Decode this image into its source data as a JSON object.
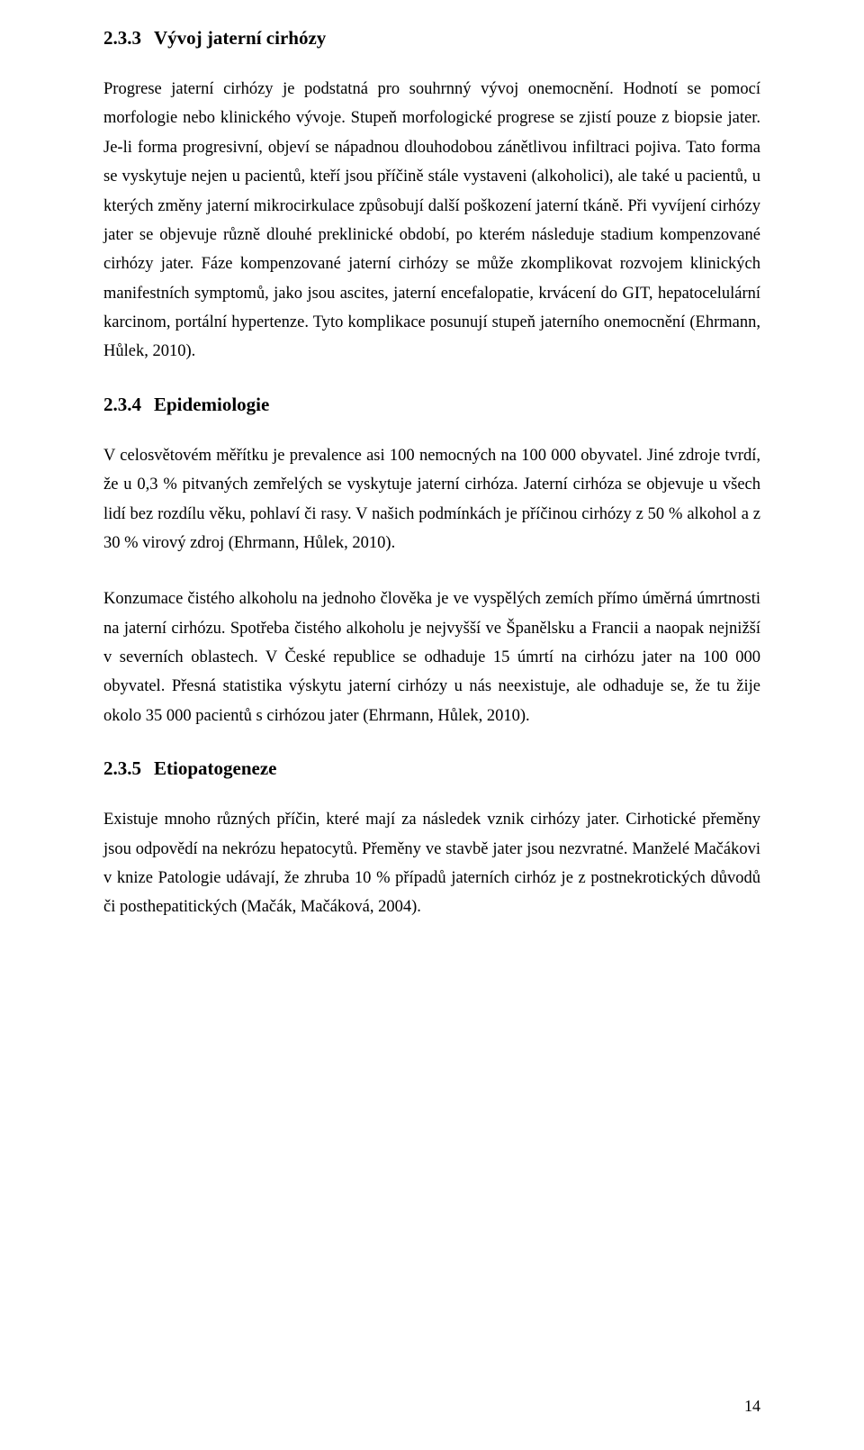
{
  "sections": [
    {
      "number": "2.3.3",
      "title": "Vývoj jaterní cirhózy",
      "paragraphs": [
        "Progrese jaterní cirhózy je podstatná pro souhrnný vývoj onemocnění. Hodnotí se pomocí morfologie nebo klinického vývoje. Stupeň morfologické progrese se zjistí pouze z biopsie jater. Je-li forma progresivní, objeví se nápadnou dlouhodobou zánětlivou infiltraci pojiva. Tato forma se vyskytuje nejen u pacientů, kteří jsou příčině stále vystaveni (alkoholici), ale také u pacientů, u kterých změny jaterní mikrocirkulace způsobují další poškození jaterní tkáně. Při vyvíjení cirhózy jater se objevuje různě dlouhé preklinické období, po kterém následuje stadium kompenzované cirhózy jater. Fáze kompenzované jaterní cirhózy se může zkomplikovat rozvojem klinických manifestních symptomů, jako jsou ascites, jaterní encefalopatie, krvácení do GIT, hepatocelulární karcinom, portální hypertenze. Tyto komplikace posunují stupeň jaterního onemocnění (Ehrmann, Hůlek, 2010)."
      ]
    },
    {
      "number": "2.3.4",
      "title": "Epidemiologie",
      "paragraphs": [
        "V celosvětovém měřítku je prevalence asi 100 nemocných na 100 000 obyvatel. Jiné zdroje tvrdí, že u 0,3 % pitvaných zemřelých se vyskytuje jaterní cirhóza. Jaterní cirhóza se objevuje u všech lidí bez rozdílu věku, pohlaví či rasy. V našich podmínkách je příčinou cirhózy z 50 % alkohol a z 30 % virový zdroj (Ehrmann, Hůlek, 2010).",
        "Konzumace čistého alkoholu na jednoho člověka je ve vyspělých zemích přímo úměrná úmrtnosti na jaterní cirhózu. Spotřeba čistého alkoholu je nejvyšší ve Španělsku a Francii a naopak nejnižší v severních oblastech. V České republice se odhaduje 15 úmrtí na cirhózu jater na 100 000 obyvatel. Přesná statistika výskytu jaterní cirhózy u nás neexistuje, ale odhaduje se, že tu žije okolo 35 000 pacientů s cirhózou jater (Ehrmann, Hůlek, 2010)."
      ]
    },
    {
      "number": "2.3.5",
      "title": "Etiopatogeneze",
      "paragraphs": [
        "Existuje mnoho různých příčin, které mají za následek vznik cirhózy jater. Cirhotické přeměny jsou odpovědí na nekrózu hepatocytů. Přeměny ve stavbě jater jsou nezvratné. Manželé Mačákovi v knize Patologie udávají, že zhruba 10 % případů jaterních cirhóz je z postnekrotických důvodů či posthepatitických (Mačák, Mačáková, 2004)."
      ]
    }
  ],
  "pageNumber": "14"
}
